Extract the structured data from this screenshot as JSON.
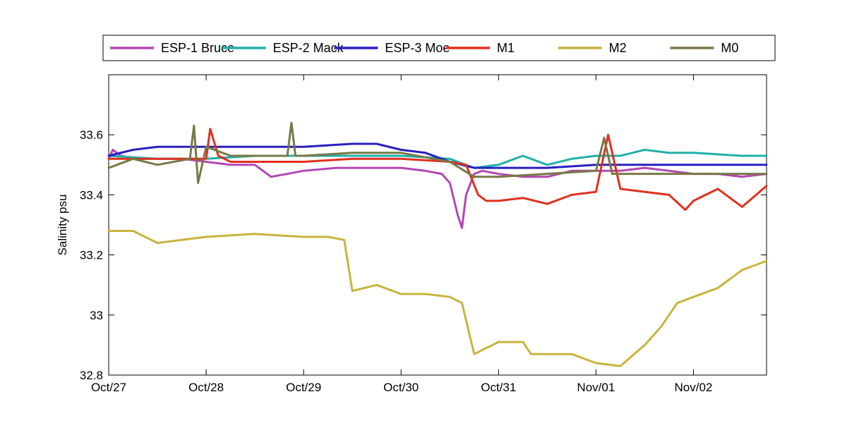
{
  "chart_data": {
    "type": "line",
    "title": "",
    "xlabel": "",
    "ylabel": "Salinity psu",
    "xlim": [
      "Oct/27",
      "Nov/02 18:00"
    ],
    "ylim": [
      32.8,
      33.8
    ],
    "x_ticks": [
      "Oct/27",
      "Oct/28",
      "Oct/29",
      "Oct/30",
      "Oct/31",
      "Nov/01",
      "Nov/02"
    ],
    "y_ticks": [
      "32.8",
      "33",
      "33.2",
      "33.4",
      "33.6"
    ],
    "grid": false,
    "legend_position": "top-center-outside",
    "series": [
      {
        "name": "ESP-1 Bruce",
        "color": "#b347b3",
        "x": [
          "Oct/27 00:00",
          "Oct/27 01:00",
          "Oct/27 03:00",
          "Oct/27 06:00",
          "Oct/27 12:00",
          "Oct/27 18:00",
          "Oct/28 00:00",
          "Oct/28 06:00",
          "Oct/28 12:00",
          "Oct/28 16:00",
          "Oct/29 00:00",
          "Oct/29 08:00",
          "Oct/29 16:00",
          "Oct/30 00:00",
          "Oct/30 06:00",
          "Oct/30 10:00",
          "Oct/30 12:00",
          "Oct/30 14:00",
          "Oct/30 15:00",
          "Oct/30 16:00",
          "Oct/30 18:00",
          "Oct/30 20:00",
          "Oct/31 00:00",
          "Oct/31 06:00",
          "Oct/31 12:00",
          "Oct/31 18:00",
          "Nov/01 00:00",
          "Nov/01 06:00",
          "Nov/01 12:00",
          "Nov/01 18:00",
          "Nov/02 00:00",
          "Nov/02 06:00",
          "Nov/02 12:00",
          "Nov/02 18:00"
        ],
        "y": [
          33.52,
          33.55,
          33.53,
          33.52,
          33.52,
          33.52,
          33.51,
          33.5,
          33.5,
          33.46,
          33.48,
          33.49,
          33.49,
          33.49,
          33.48,
          33.47,
          33.44,
          33.33,
          33.29,
          33.4,
          33.47,
          33.48,
          33.47,
          33.46,
          33.46,
          33.48,
          33.48,
          33.48,
          33.49,
          33.48,
          33.47,
          33.47,
          33.46,
          33.47
        ]
      },
      {
        "name": "ESP-2 Mack",
        "color": "#20b0aa",
        "x": [
          "Oct/27 00:00",
          "Oct/27 12:00",
          "Oct/28 00:00",
          "Oct/28 12:00",
          "Oct/29 00:00",
          "Oct/29 12:00",
          "Oct/30 00:00",
          "Oct/30 12:00",
          "Oct/30 18:00",
          "Oct/31 00:00",
          "Oct/31 06:00",
          "Oct/31 12:00",
          "Oct/31 18:00",
          "Nov/01 00:00",
          "Nov/01 06:00",
          "Nov/01 12:00",
          "Nov/01 18:00",
          "Nov/02 00:00",
          "Nov/02 12:00",
          "Nov/02 18:00"
        ],
        "y": [
          33.53,
          33.52,
          33.52,
          33.53,
          33.53,
          33.53,
          33.53,
          33.52,
          33.49,
          33.5,
          33.53,
          33.5,
          33.52,
          33.53,
          33.53,
          33.55,
          33.54,
          33.54,
          33.53,
          33.53
        ]
      },
      {
        "name": "ESP-3 Moe",
        "color": "#2a1fc0",
        "x": [
          "Oct/27 00:00",
          "Oct/27 06:00",
          "Oct/27 12:00",
          "Oct/28 00:00",
          "Oct/28 12:00",
          "Oct/29 00:00",
          "Oct/29 12:00",
          "Oct/29 18:00",
          "Oct/30 00:00",
          "Oct/30 06:00",
          "Oct/30 12:00",
          "Oct/30 18:00",
          "Oct/31 00:00",
          "Oct/31 12:00",
          "Nov/01 00:00",
          "Nov/01 12:00",
          "Nov/02 00:00",
          "Nov/02 12:00",
          "Nov/02 18:00"
        ],
        "y": [
          33.53,
          33.55,
          33.56,
          33.56,
          33.56,
          33.56,
          33.57,
          33.57,
          33.55,
          33.54,
          33.51,
          33.49,
          33.49,
          33.49,
          33.5,
          33.5,
          33.5,
          33.5,
          33.5
        ]
      },
      {
        "name": "M1",
        "color": "#e0301e",
        "x": [
          "Oct/27 00:00",
          "Oct/27 12:00",
          "Oct/28 00:00",
          "Oct/28 01:00",
          "Oct/28 03:00",
          "Oct/28 06:00",
          "Oct/28 12:00",
          "Oct/29 00:00",
          "Oct/29 12:00",
          "Oct/30 00:00",
          "Oct/30 12:00",
          "Oct/30 16:00",
          "Oct/30 19:00",
          "Oct/30 21:00",
          "Oct/31 00:00",
          "Oct/31 06:00",
          "Oct/31 12:00",
          "Oct/31 18:00",
          "Nov/01 00:00",
          "Nov/01 03:00",
          "Nov/01 06:00",
          "Nov/01 12:00",
          "Nov/01 18:00",
          "Nov/01 22:00",
          "Nov/02 00:00",
          "Nov/02 06:00",
          "Nov/02 12:00",
          "Nov/02 18:00"
        ],
        "y": [
          33.52,
          33.52,
          33.52,
          33.62,
          33.53,
          33.51,
          33.51,
          33.51,
          33.52,
          33.52,
          33.51,
          33.5,
          33.4,
          33.38,
          33.38,
          33.39,
          33.37,
          33.4,
          33.41,
          33.6,
          33.42,
          33.41,
          33.4,
          33.35,
          33.38,
          33.42,
          33.36,
          33.43
        ]
      },
      {
        "name": "M2",
        "color": "#c8b43c",
        "x": [
          "Oct/27 00:00",
          "Oct/27 06:00",
          "Oct/27 12:00",
          "Oct/27 18:00",
          "Oct/28 00:00",
          "Oct/28 12:00",
          "Oct/29 00:00",
          "Oct/29 06:00",
          "Oct/29 10:00",
          "Oct/29 12:00",
          "Oct/29 18:00",
          "Oct/30 00:00",
          "Oct/30 06:00",
          "Oct/30 12:00",
          "Oct/30 15:00",
          "Oct/30 18:00",
          "Oct/31 00:00",
          "Oct/31 06:00",
          "Oct/31 08:00",
          "Oct/31 12:00",
          "Oct/31 18:00",
          "Nov/01 00:00",
          "Nov/01 06:00",
          "Nov/01 12:00",
          "Nov/01 16:00",
          "Nov/01 20:00",
          "Nov/02 00:00",
          "Nov/02 06:00",
          "Nov/02 12:00",
          "Nov/02 18:00"
        ],
        "y": [
          33.28,
          33.28,
          33.24,
          33.25,
          33.26,
          33.27,
          33.26,
          33.26,
          33.25,
          33.08,
          33.1,
          33.07,
          33.07,
          33.06,
          33.04,
          32.87,
          32.91,
          32.91,
          32.87,
          32.87,
          32.87,
          32.84,
          32.83,
          32.9,
          32.96,
          33.04,
          33.06,
          33.09,
          33.15,
          33.18
        ]
      },
      {
        "name": "M0",
        "color": "#787846",
        "x": [
          "Oct/27 00:00",
          "Oct/27 06:00",
          "Oct/27 12:00",
          "Oct/27 20:00",
          "Oct/27 21:00",
          "Oct/27 22:00",
          "Oct/28 00:00",
          "Oct/28 06:00",
          "Oct/28 12:00",
          "Oct/28 20:00",
          "Oct/28 21:00",
          "Oct/28 22:00",
          "Oct/29 00:00",
          "Oct/29 12:00",
          "Oct/30 00:00",
          "Oct/30 12:00",
          "Oct/30 18:00",
          "Oct/31 00:00",
          "Oct/31 12:00",
          "Nov/01 00:00",
          "Nov/01 02:00",
          "Nov/01 04:00",
          "Nov/01 12:00",
          "Nov/01 18:00",
          "Nov/02 00:00",
          "Nov/02 12:00",
          "Nov/02 18:00"
        ],
        "y": [
          33.49,
          33.52,
          33.5,
          33.52,
          33.63,
          33.44,
          33.56,
          33.53,
          33.53,
          33.53,
          33.64,
          33.53,
          33.53,
          33.54,
          33.54,
          33.51,
          33.46,
          33.46,
          33.47,
          33.48,
          33.59,
          33.47,
          33.47,
          33.47,
          33.47,
          33.47,
          33.47
        ]
      }
    ]
  }
}
